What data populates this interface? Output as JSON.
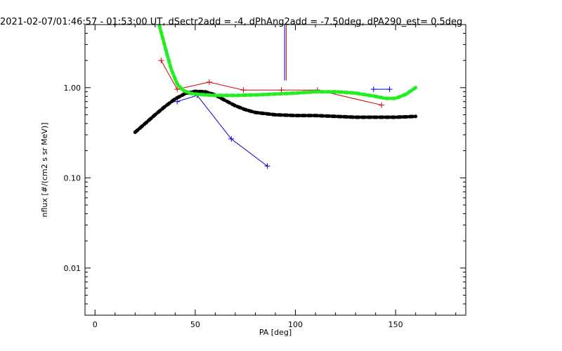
{
  "chart_data": {
    "type": "line",
    "title": "2021-02-07/01:46:57 - 01:53:00 UT, dSectr2add = -4, dPhAng2add = -7.50deg, dPA290_est=   0.5deg",
    "xlabel": "PA [deg]",
    "ylabel": "nflux [#/(cm2 s sr MeV)]",
    "xlim": [
      -5,
      185
    ],
    "ylim": [
      0.003,
      5.0
    ],
    "yscale": "log",
    "grid": false,
    "x_ticks": [
      0,
      50,
      100,
      150
    ],
    "x_tick_labels": [
      "0",
      "50",
      "100",
      "150"
    ],
    "y_ticks": [
      0.01,
      0.1,
      1.0
    ],
    "y_tick_labels": [
      "0.01",
      "0.10",
      "1.00"
    ],
    "series": [
      {
        "color": "#d00000",
        "style": "line-plus",
        "x": [
          33,
          41,
          57,
          74,
          93,
          111,
          143
        ],
        "y": [
          2.0,
          0.96,
          1.15,
          0.94,
          0.94,
          0.94,
          0.64
        ]
      },
      {
        "color": "#0000cc",
        "style": "line-plus",
        "x": [
          41,
          51,
          68,
          86
        ],
        "y": [
          0.7,
          0.82,
          0.27,
          0.135
        ]
      },
      {
        "color": "#0000cc",
        "style": "line-plus",
        "x": [
          139,
          147
        ],
        "y": [
          0.96,
          0.96
        ]
      },
      {
        "color": "#000000",
        "style": "thick-dots",
        "x": [
          20,
          25,
          30,
          35,
          40,
          45,
          50,
          55,
          60,
          65,
          70,
          75,
          80,
          90,
          100,
          110,
          120,
          130,
          140,
          150,
          160
        ],
        "y": [
          0.32,
          0.4,
          0.5,
          0.62,
          0.75,
          0.86,
          0.91,
          0.9,
          0.83,
          0.72,
          0.63,
          0.57,
          0.53,
          0.5,
          0.49,
          0.49,
          0.48,
          0.47,
          0.47,
          0.47,
          0.48
        ]
      },
      {
        "color": "#22ee22",
        "style": "thick-dots",
        "x": [
          32,
          35,
          38,
          41,
          44,
          48,
          52,
          56,
          60,
          70,
          80,
          90,
          100,
          110,
          120,
          130,
          140,
          145,
          150,
          155,
          160
        ],
        "y": [
          5.0,
          2.8,
          1.6,
          1.1,
          0.93,
          0.86,
          0.84,
          0.83,
          0.82,
          0.82,
          0.83,
          0.85,
          0.87,
          0.9,
          0.9,
          0.87,
          0.8,
          0.76,
          0.76,
          0.84,
          1.0
        ]
      }
    ],
    "vertical_markers": [
      {
        "color": "#0000cc",
        "x": 94.6,
        "y_top": 5.0,
        "y_bottom": 1.2
      },
      {
        "color": "#d00000",
        "x": 95.4,
        "y_top": 5.0,
        "y_bottom": 1.2
      }
    ]
  }
}
